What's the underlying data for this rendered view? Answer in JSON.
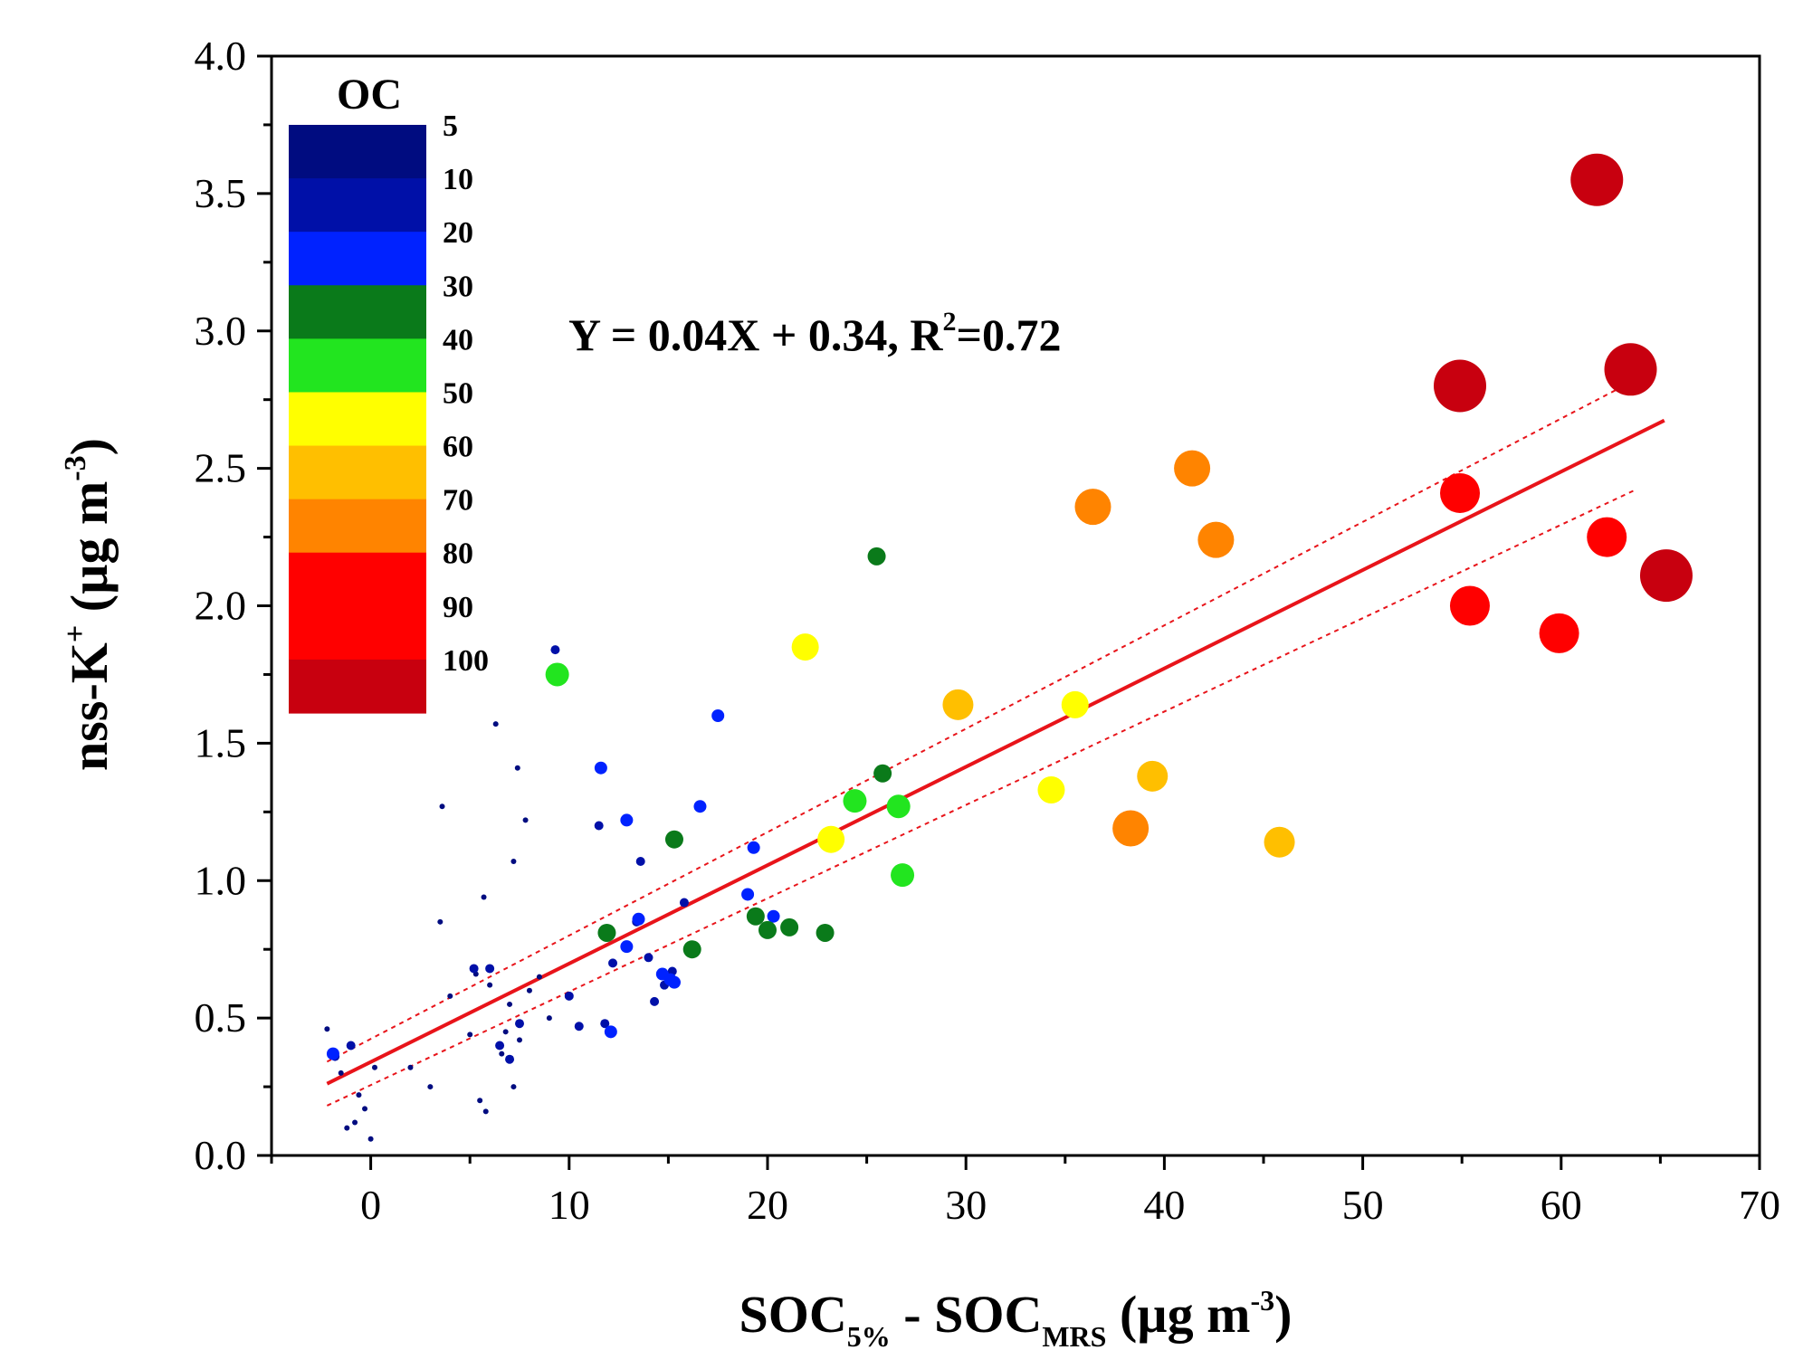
{
  "chart_data": {
    "type": "scatter",
    "title": "",
    "xlabel": {
      "main": "SOC",
      "sub1": "5%",
      "mid": " - SOC",
      "sub2": "MRS",
      "unit": " (µg m",
      "sup": "-3",
      "end": ")"
    },
    "ylabel": {
      "main": "nss-K",
      "sup1": "+",
      "unit": " (µg m",
      "sup2": "-3",
      "end": ")"
    },
    "xlim": [
      -5,
      70
    ],
    "ylim": [
      0,
      4
    ],
    "x_ticks": [
      0,
      10,
      20,
      30,
      40,
      50,
      60,
      70
    ],
    "y_ticks": [
      "0.0",
      "0.5",
      "1.0",
      "1.5",
      "2.0",
      "2.5",
      "3.0",
      "3.5",
      "4.0"
    ],
    "grid": false,
    "equation": {
      "text": "Y = 0.04X + 0.34, R",
      "sup": "2",
      "tail": "=0.72"
    },
    "fit": {
      "slope": 0.0358,
      "intercept": 0.34,
      "x_range": [
        -2.2,
        65.2
      ],
      "color": "#e8141a",
      "band_offset": 0.2
    },
    "color_scale": {
      "title": "OC",
      "bins": [
        {
          "label": "5",
          "color": "#000c80"
        },
        {
          "label": "10",
          "color": "#0010a8"
        },
        {
          "label": "20",
          "color": "#0022ff"
        },
        {
          "label": "30",
          "color": "#0a7a1a"
        },
        {
          "label": "40",
          "color": "#22e51f"
        },
        {
          "label": "50",
          "color": "#ffff00"
        },
        {
          "label": "60",
          "color": "#ffbf00"
        },
        {
          "label": "70",
          "color": "#ff8400"
        },
        {
          "label": "80",
          "color": "#ff0000"
        },
        {
          "label": "90",
          "color": "#ff0000"
        },
        {
          "label": "100",
          "color": "#c8000f"
        }
      ]
    },
    "series": [
      {
        "name": "OC 5-10",
        "color": "#000c80",
        "size": 1.5,
        "points": [
          [
            -2.2,
            0.46
          ],
          [
            -1.5,
            0.3
          ],
          [
            -1.2,
            0.1
          ],
          [
            -0.8,
            0.12
          ],
          [
            -0.6,
            0.22
          ],
          [
            -0.3,
            0.17
          ],
          [
            0.0,
            0.06
          ],
          [
            0.2,
            0.32
          ],
          [
            2.0,
            0.32
          ],
          [
            3.0,
            0.25
          ],
          [
            3.5,
            0.85
          ],
          [
            3.6,
            1.27
          ],
          [
            5.0,
            0.44
          ],
          [
            5.3,
            0.66
          ],
          [
            5.5,
            0.2
          ],
          [
            5.8,
            0.16
          ],
          [
            6.0,
            0.62
          ],
          [
            6.3,
            1.57
          ],
          [
            6.6,
            0.37
          ],
          [
            7.0,
            0.55
          ],
          [
            7.2,
            0.25
          ],
          [
            7.4,
            1.41
          ],
          [
            7.2,
            1.07
          ],
          [
            7.8,
            1.22
          ],
          [
            8.0,
            0.6
          ],
          [
            8.5,
            0.65
          ],
          [
            9.0,
            0.5
          ],
          [
            4.0,
            0.58
          ],
          [
            5.7,
            0.94
          ],
          [
            6.8,
            0.45
          ],
          [
            7.5,
            0.42
          ]
        ]
      },
      {
        "name": "OC 10-20",
        "color": "#0010a8",
        "size": 2.5,
        "points": [
          [
            -1.8,
            0.36
          ],
          [
            -1.0,
            0.4
          ],
          [
            5.2,
            0.68
          ],
          [
            6.0,
            0.68
          ],
          [
            6.5,
            0.4
          ],
          [
            7.0,
            0.35
          ],
          [
            7.5,
            0.48
          ],
          [
            9.3,
            1.84
          ],
          [
            10.0,
            0.58
          ],
          [
            10.5,
            0.47
          ],
          [
            11.5,
            1.2
          ],
          [
            11.8,
            0.48
          ],
          [
            12.2,
            0.7
          ],
          [
            13.4,
            0.85
          ],
          [
            13.6,
            1.07
          ],
          [
            14.0,
            0.72
          ],
          [
            14.3,
            0.56
          ],
          [
            14.8,
            0.62
          ],
          [
            15.2,
            0.67
          ],
          [
            15.8,
            0.92
          ]
        ]
      },
      {
        "name": "OC 20-30",
        "color": "#0022ff",
        "size": 3.5,
        "points": [
          [
            -1.9,
            0.37
          ],
          [
            11.6,
            1.41
          ],
          [
            12.1,
            0.45
          ],
          [
            12.9,
            0.76
          ],
          [
            12.9,
            1.22
          ],
          [
            13.5,
            0.86
          ],
          [
            14.7,
            0.66
          ],
          [
            15.1,
            0.64
          ],
          [
            15.3,
            0.63
          ],
          [
            16.6,
            1.27
          ],
          [
            17.5,
            1.6
          ],
          [
            19.0,
            0.95
          ],
          [
            19.3,
            1.12
          ],
          [
            20.3,
            0.87
          ]
        ]
      },
      {
        "name": "OC 30-40",
        "color": "#0a7a1a",
        "size": 5,
        "points": [
          [
            11.9,
            0.81
          ],
          [
            15.3,
            1.15
          ],
          [
            16.2,
            0.75
          ],
          [
            19.4,
            0.87
          ],
          [
            20.0,
            0.82
          ],
          [
            21.1,
            0.83
          ],
          [
            22.9,
            0.81
          ],
          [
            25.5,
            2.18
          ],
          [
            25.8,
            1.39
          ]
        ]
      },
      {
        "name": "OC 40-50",
        "color": "#22e51f",
        "size": 6.5,
        "points": [
          [
            9.4,
            1.75
          ],
          [
            24.4,
            1.29
          ],
          [
            26.6,
            1.27
          ],
          [
            26.8,
            1.02
          ]
        ]
      },
      {
        "name": "OC 50-60",
        "color": "#ffff00",
        "size": 7.5,
        "points": [
          [
            21.9,
            1.85
          ],
          [
            23.2,
            1.15
          ],
          [
            34.3,
            1.33
          ],
          [
            35.5,
            1.64
          ]
        ]
      },
      {
        "name": "OC 60-70",
        "color": "#ffbf00",
        "size": 8.5,
        "points": [
          [
            29.6,
            1.64
          ],
          [
            39.4,
            1.38
          ],
          [
            45.8,
            1.14
          ]
        ]
      },
      {
        "name": "OC 70-80",
        "color": "#ff8400",
        "size": 10,
        "points": [
          [
            36.4,
            2.36
          ],
          [
            41.4,
            2.5
          ],
          [
            42.6,
            2.24
          ],
          [
            38.3,
            1.19
          ]
        ]
      },
      {
        "name": "OC 80-100",
        "color": "#ff0000",
        "size": 11,
        "points": [
          [
            54.9,
            2.41
          ],
          [
            55.4,
            2.0
          ],
          [
            59.9,
            1.9
          ],
          [
            62.3,
            2.25
          ]
        ]
      },
      {
        "name": "OC >100",
        "color": "#c8000f",
        "size": 14.5,
        "points": [
          [
            61.8,
            3.55
          ],
          [
            54.9,
            2.8
          ],
          [
            63.5,
            2.86
          ],
          [
            65.3,
            2.11
          ]
        ]
      }
    ]
  }
}
